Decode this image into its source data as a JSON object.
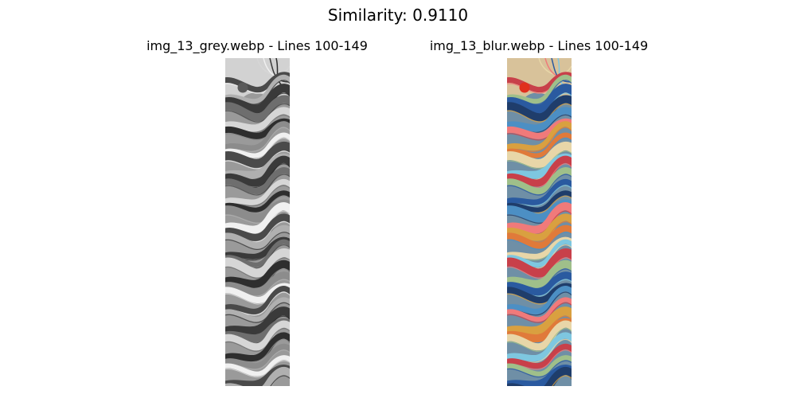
{
  "figure": {
    "title": "Similarity: 0.9110"
  },
  "panels": [
    {
      "title": "img_13_grey.webp - Lines 100-149",
      "image_kind": "grayscale swirling wavy strokes",
      "palette": {
        "base": "#9a9a9a",
        "top_patch": "#d2d2d2",
        "dot": "#5a5a5a",
        "strokes": [
          "#2e2e2e",
          "#4a4a4a",
          "#6e6e6e",
          "#8c8c8c",
          "#b0b0b0",
          "#d6d6d6",
          "#f0f0f0",
          "#3a3a3a"
        ]
      }
    },
    {
      "title": "img_13_blur.webp - Lines 100-149",
      "image_kind": "color swirling wavy strokes",
      "palette": {
        "base": "#6f8fa6",
        "top_patch": "#d8c29a",
        "dot": "#e0301e",
        "strokes": [
          "#1f3d6b",
          "#c8404a",
          "#e07a3a",
          "#4c8fc4",
          "#9fbf8a",
          "#e8d6a8",
          "#f07a7a",
          "#2a5aa0",
          "#7ec7e0",
          "#d9a040"
        ]
      }
    }
  ]
}
